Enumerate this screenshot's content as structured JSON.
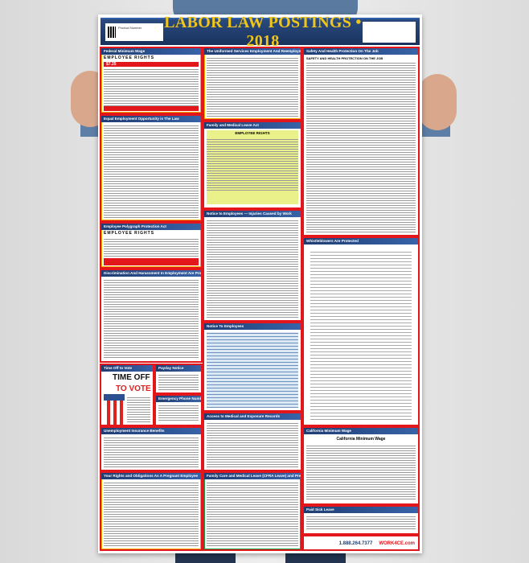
{
  "poster": {
    "title": "LABOR LAW POSTINGS • 2018",
    "product_label": "Product Number",
    "phone": "1.888.264.7377",
    "brand": "WORK4CE.com"
  },
  "sections": {
    "federal_minimum_wage": {
      "heading": "Federal Minimum Wage",
      "subheading": "EMPLOYEE RIGHTS",
      "wage": "$7.25"
    },
    "userra": {
      "heading": "The Uniformed Services Employment And Reemployment Rights Act"
    },
    "safety": {
      "heading": "Safety And Health Protection On The Job",
      "subheading": "SAFETY AND HEALTH PROTECTION ON THE JOB"
    },
    "eeo": {
      "heading": "Equal Employment Opportunity is The Law"
    },
    "fmla": {
      "heading": "Family and Medical Leave Act",
      "subheading": "EMPLOYEE RIGHTS"
    },
    "polygraph": {
      "heading": "Employee Polygraph Protection Act",
      "subheading": "EMPLOYEE RIGHTS"
    },
    "injuries": {
      "heading": "Notice to Employees — Injuries Caused by Work"
    },
    "whistleblowers": {
      "heading": "Whistleblowers Are Protected"
    },
    "discrimination": {
      "heading": "Discrimination And Harassment In Employment Are Prohibited By Law"
    },
    "notice_employees": {
      "heading": "Notice To Employees"
    },
    "time_off_vote": {
      "heading": "Time Off to Vote",
      "line1": "TIME OFF",
      "line2": "TO VOTE"
    },
    "payday": {
      "heading": "Payday Notice"
    },
    "emergency": {
      "heading": "Emergency Phone Numbers"
    },
    "unemployment": {
      "heading": "Unemployment Insurance Benefits"
    },
    "access_records": {
      "heading": "Access to Medical and Exposure Records"
    },
    "ca_minimum_wage": {
      "heading": "California Minimum Wage",
      "subheading": "California Minimum Wage"
    },
    "pregnant": {
      "heading": "Your Rights and Obligations As A Pregnant Employee"
    },
    "cfra": {
      "heading": "Family Care and Medical Leave (CFRA Leave) and Pregnancy Disability Leave"
    },
    "paid_sick": {
      "heading": "Paid Sick Leave"
    }
  }
}
